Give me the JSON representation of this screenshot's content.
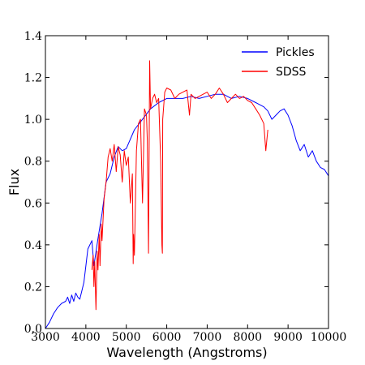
{
  "chart_data": {
    "type": "line",
    "xlabel": "Wavelength (Angstroms)",
    "ylabel": "Flux",
    "xlim": [
      3000,
      10000
    ],
    "ylim": [
      0.0,
      1.4
    ],
    "xticks": [
      3000,
      4000,
      5000,
      6000,
      7000,
      8000,
      9000,
      10000
    ],
    "yticks": [
      "0.0",
      "0.2",
      "0.4",
      "0.6",
      "0.8",
      "1.0",
      "1.2",
      "1.4"
    ],
    "grid": false,
    "legend_position": "top-right",
    "series": [
      {
        "name": "Pickles",
        "color": "#0000ff",
        "x": [
          3000,
          3100,
          3200,
          3300,
          3400,
          3500,
          3550,
          3600,
          3650,
          3700,
          3750,
          3800,
          3850,
          3900,
          3950,
          4000,
          4050,
          4100,
          4150,
          4200,
          4300,
          4400,
          4500,
          4600,
          4700,
          4800,
          4900,
          5000,
          5200,
          5400,
          5600,
          5800,
          6000,
          6200,
          6400,
          6600,
          6800,
          7000,
          7200,
          7400,
          7600,
          7800,
          8000,
          8200,
          8400,
          8500,
          8600,
          8700,
          8800,
          8900,
          9000,
          9100,
          9200,
          9300,
          9400,
          9500,
          9600,
          9700,
          9800,
          9900,
          10000
        ],
        "y": [
          0.0,
          0.03,
          0.07,
          0.1,
          0.12,
          0.13,
          0.15,
          0.12,
          0.16,
          0.13,
          0.17,
          0.15,
          0.14,
          0.18,
          0.22,
          0.3,
          0.38,
          0.4,
          0.42,
          0.3,
          0.43,
          0.55,
          0.7,
          0.74,
          0.82,
          0.87,
          0.85,
          0.86,
          0.95,
          1.0,
          1.05,
          1.08,
          1.1,
          1.1,
          1.1,
          1.11,
          1.1,
          1.11,
          1.12,
          1.12,
          1.1,
          1.11,
          1.1,
          1.08,
          1.06,
          1.04,
          1.0,
          1.02,
          1.04,
          1.05,
          1.02,
          0.97,
          0.9,
          0.85,
          0.88,
          0.82,
          0.85,
          0.8,
          0.77,
          0.76,
          0.73
        ]
      },
      {
        "name": "SDSS",
        "color": "#ff0000",
        "x": [
          4150,
          4180,
          4200,
          4220,
          4250,
          4280,
          4300,
          4330,
          4350,
          4380,
          4400,
          4450,
          4500,
          4550,
          4600,
          4650,
          4700,
          4750,
          4800,
          4850,
          4900,
          4950,
          5000,
          5050,
          5100,
          5150,
          5170,
          5180,
          5200,
          5250,
          5300,
          5350,
          5400,
          5450,
          5500,
          5520,
          5550,
          5577,
          5600,
          5650,
          5700,
          5750,
          5800,
          5850,
          5880,
          5893,
          5900,
          5950,
          6000,
          6100,
          6200,
          6300,
          6400,
          6500,
          6563,
          6600,
          6700,
          6800,
          6900,
          7000,
          7100,
          7200,
          7300,
          7400,
          7500,
          7600,
          7700,
          7800,
          7900,
          8000,
          8100,
          8200,
          8300,
          8400,
          8450,
          8500
        ],
        "y": [
          0.28,
          0.35,
          0.2,
          0.32,
          0.09,
          0.37,
          0.28,
          0.45,
          0.3,
          0.5,
          0.42,
          0.62,
          0.7,
          0.82,
          0.86,
          0.8,
          0.88,
          0.75,
          0.87,
          0.83,
          0.7,
          0.85,
          0.78,
          0.82,
          0.6,
          0.74,
          0.31,
          0.45,
          0.35,
          0.85,
          0.98,
          1.0,
          0.6,
          1.05,
          1.02,
          0.9,
          0.36,
          1.28,
          1.05,
          1.1,
          1.12,
          1.08,
          1.1,
          0.8,
          0.4,
          0.36,
          1.0,
          1.13,
          1.15,
          1.14,
          1.1,
          1.12,
          1.13,
          1.14,
          1.02,
          1.12,
          1.1,
          1.11,
          1.12,
          1.13,
          1.1,
          1.12,
          1.15,
          1.12,
          1.08,
          1.1,
          1.12,
          1.1,
          1.11,
          1.09,
          1.08,
          1.05,
          1.02,
          0.98,
          0.85,
          0.95
        ]
      }
    ]
  }
}
